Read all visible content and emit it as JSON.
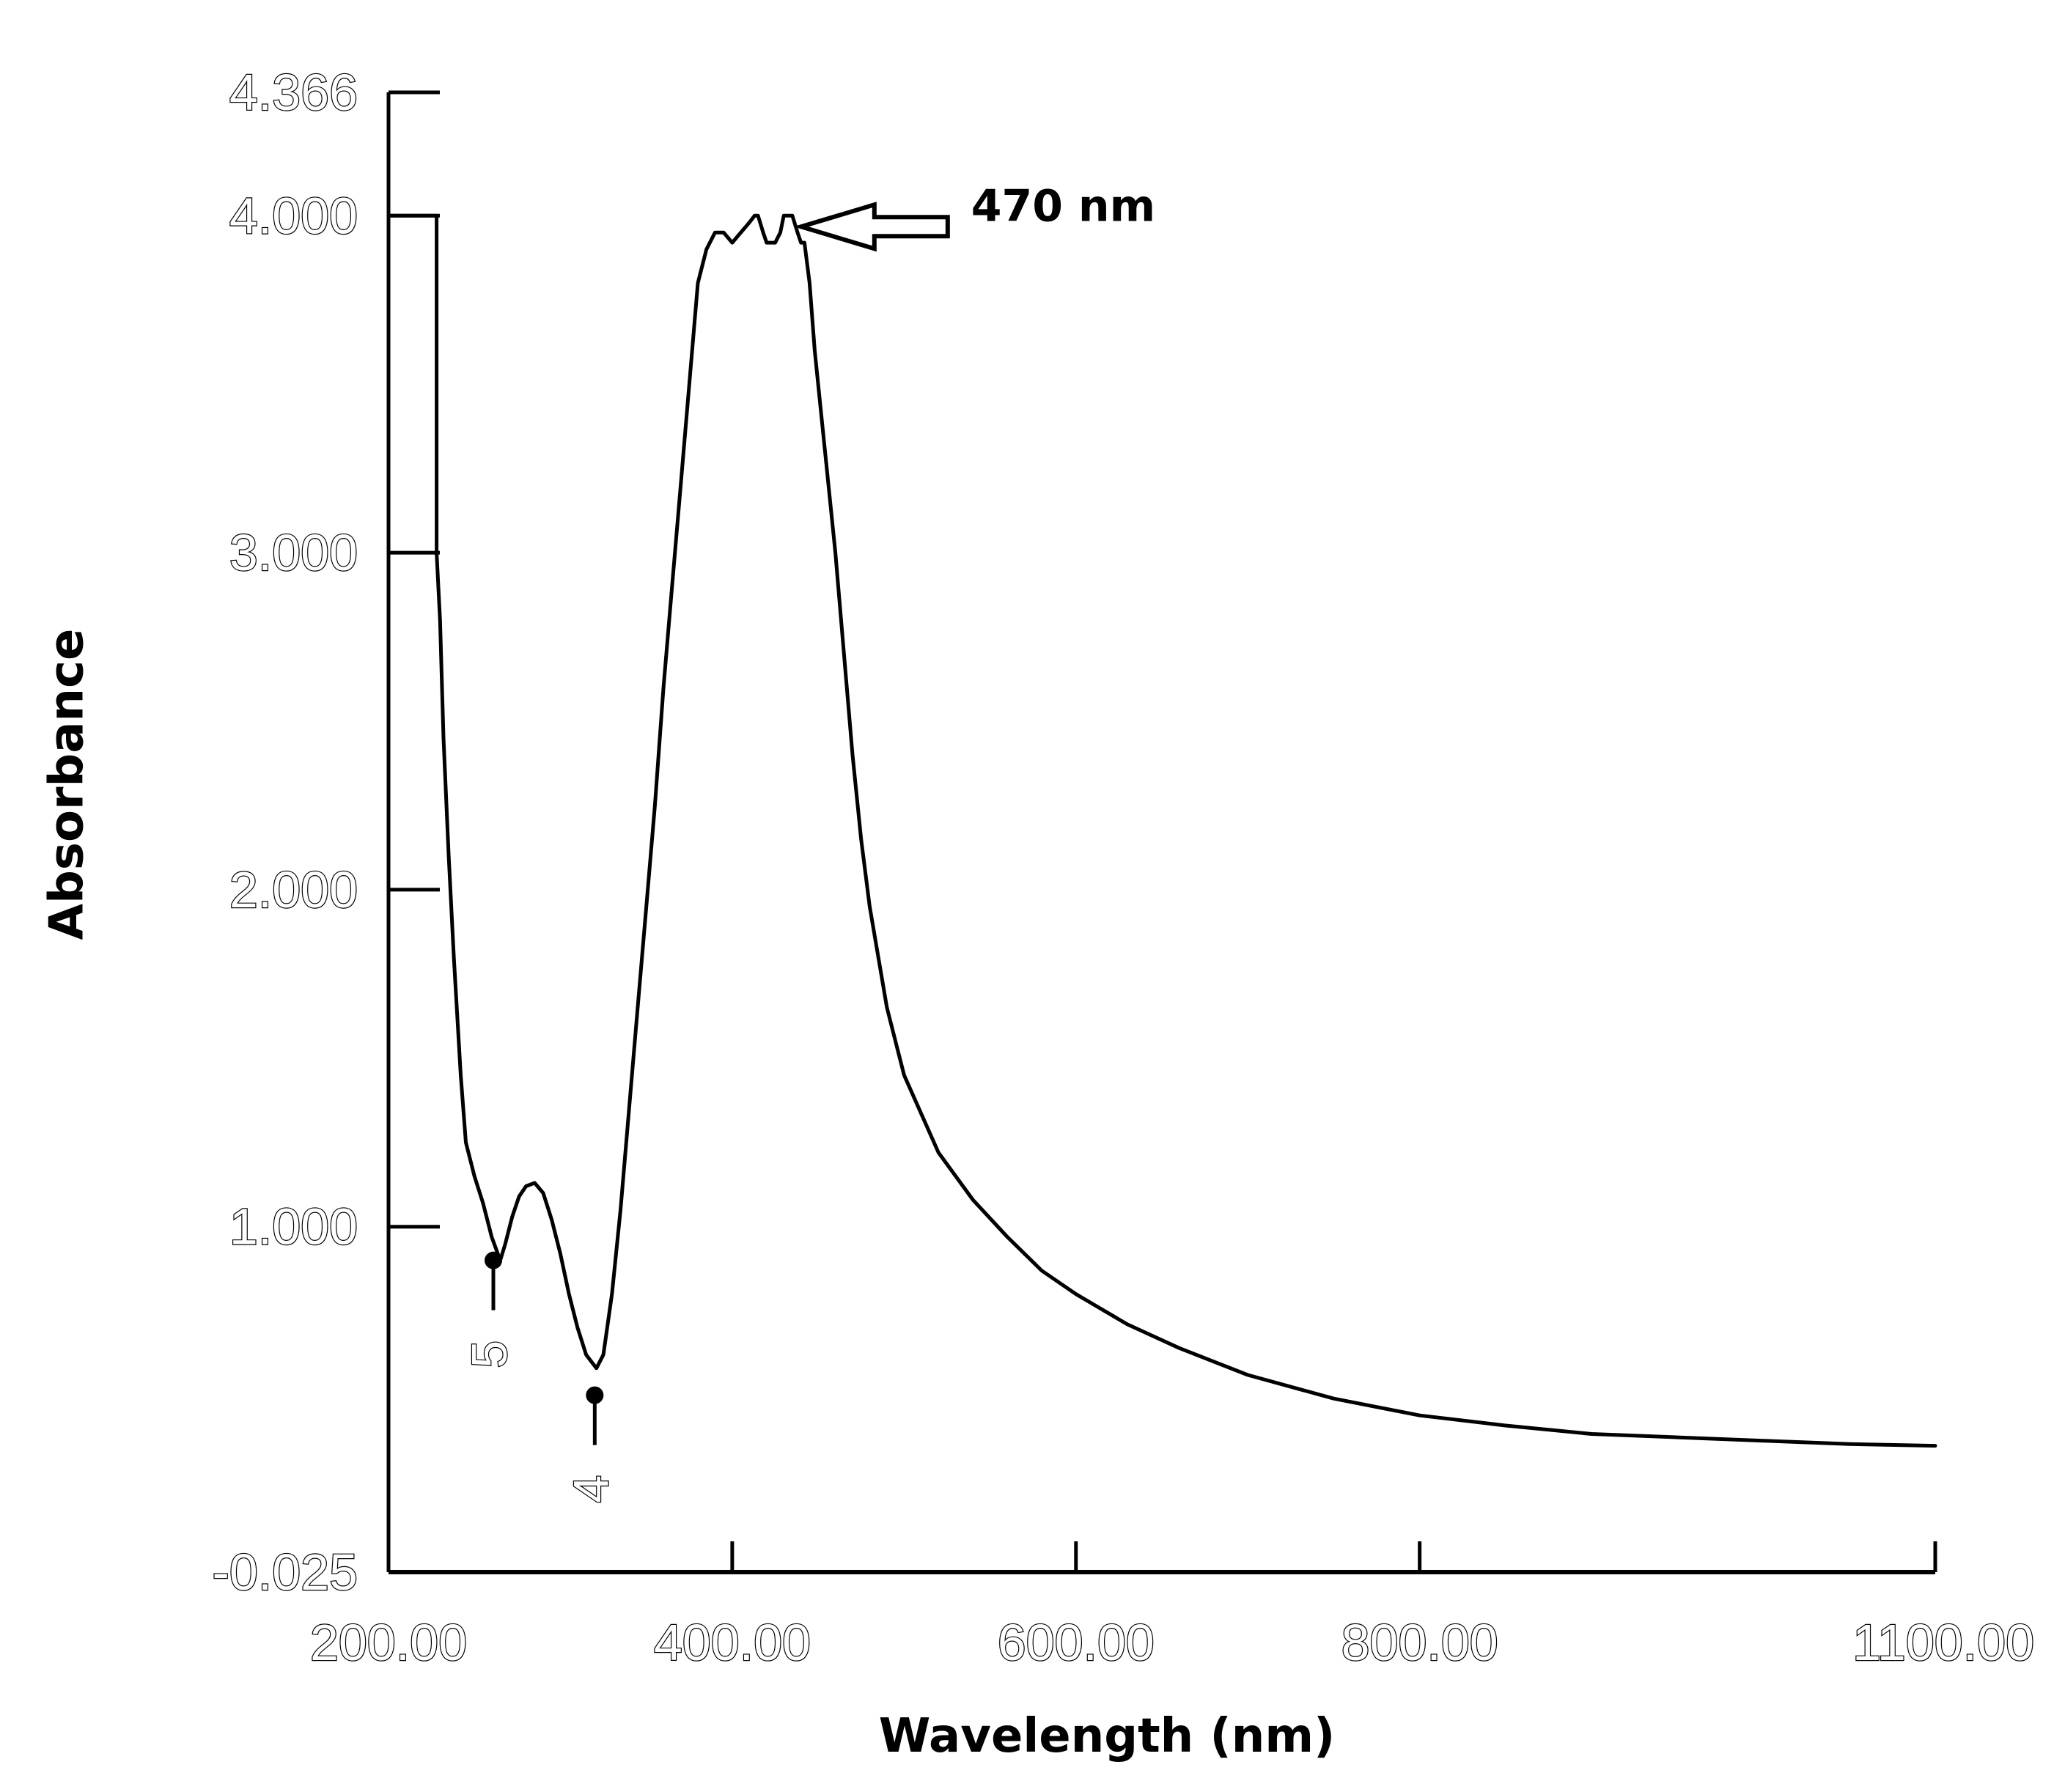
{
  "chart_data": {
    "type": "line",
    "title": "",
    "xlabel": "Wavelength (nm)",
    "ylabel": "Absorbance",
    "xlim": [
      200,
      1100
    ],
    "ylim": [
      -0.025,
      4.366
    ],
    "x_tick_values": [
      200,
      400,
      600,
      800,
      1100
    ],
    "x_tick_labels": [
      "200.00",
      "400.00",
      "600.00",
      "800.00",
      "1100.00"
    ],
    "y_tick_values": [
      4.366,
      4.0,
      3.0,
      2.0,
      1.0,
      -0.025
    ],
    "y_tick_labels": [
      "4.366",
      "4.000",
      "3.000",
      "2.000",
      "1.000",
      "-0.025"
    ],
    "grid": false,
    "series": [
      {
        "color": "#000000",
        "x": [
          200,
          228,
          228,
          230,
          232,
          235,
          238,
          242,
          245,
          250,
          255,
          260,
          265,
          268,
          272,
          276,
          280,
          285,
          290,
          295,
          300,
          305,
          310,
          315,
          318,
          321,
          325,
          330,
          335,
          340,
          345,
          350,
          355,
          360,
          365,
          370,
          375,
          380,
          385,
          390,
          395,
          400,
          405,
          410,
          413,
          415,
          418,
          420,
          423,
          425,
          428,
          430,
          433,
          435,
          438,
          440,
          442,
          445,
          448,
          452,
          456,
          460,
          465,
          470,
          475,
          480,
          490,
          500,
          520,
          540,
          560,
          580,
          600,
          630,
          660,
          700,
          750,
          800,
          850,
          900,
          950,
          1000,
          1050,
          1100
        ],
        "values": [
          4.0,
          4.0,
          3.0,
          2.8,
          2.45,
          2.1,
          1.8,
          1.45,
          1.25,
          1.15,
          1.07,
          0.97,
          0.9,
          0.95,
          1.03,
          1.09,
          1.12,
          1.13,
          1.1,
          1.02,
          0.92,
          0.8,
          0.7,
          0.62,
          0.6,
          0.58,
          0.62,
          0.8,
          1.05,
          1.35,
          1.65,
          1.95,
          2.25,
          2.6,
          2.9,
          3.2,
          3.5,
          3.8,
          3.9,
          3.95,
          3.95,
          3.92,
          3.95,
          3.98,
          4.0,
          4.0,
          3.95,
          3.92,
          3.92,
          3.92,
          3.95,
          4.0,
          4.0,
          4.0,
          3.95,
          3.92,
          3.92,
          3.8,
          3.6,
          3.4,
          3.2,
          3.0,
          2.7,
          2.4,
          2.15,
          1.95,
          1.65,
          1.45,
          1.22,
          1.08,
          0.97,
          0.87,
          0.8,
          0.71,
          0.64,
          0.56,
          0.49,
          0.44,
          0.41,
          0.385,
          0.375,
          0.365,
          0.355,
          0.35
        ]
      }
    ],
    "marked_points": [
      {
        "label": "5",
        "x": 261,
        "y": 0.9
      },
      {
        "label": "4",
        "x": 320,
        "y": 0.5
      }
    ],
    "annotations": [
      {
        "text": "470 nm",
        "x": 423,
        "y": 4.0
      }
    ]
  }
}
